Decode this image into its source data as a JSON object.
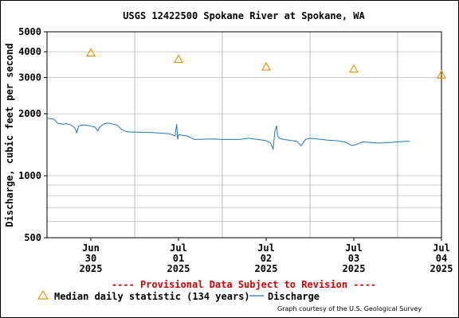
{
  "chart_data": {
    "type": "line",
    "title": "USGS 12422500 Spokane River at Spokane, WA",
    "ylabel": "Discharge, cubic feet per second",
    "yscale": "log",
    "ylim": [
      500,
      5000
    ],
    "yticks": [
      500,
      1000,
      2000,
      3000,
      4000,
      5000
    ],
    "x_range_days": [
      0,
      4.5
    ],
    "xticks": [
      {
        "day": 0.5,
        "month": "Jun",
        "date": "30",
        "year": "2025"
      },
      {
        "day": 1.5,
        "month": "Jul",
        "date": "01",
        "year": "2025"
      },
      {
        "day": 2.5,
        "month": "Jul",
        "date": "02",
        "year": "2025"
      },
      {
        "day": 3.5,
        "month": "Jul",
        "date": "03",
        "year": "2025"
      },
      {
        "day": 4.5,
        "month": "Jul",
        "date": "04",
        "year": "2025"
      }
    ],
    "series": [
      {
        "name": "Median daily statistic (134 years)",
        "marker": "triangle",
        "color": "#e69500",
        "x": [
          0.5,
          1.5,
          2.5,
          3.5,
          4.5
        ],
        "y": [
          3950,
          3680,
          3380,
          3300,
          3090
        ]
      },
      {
        "name": "Discharge",
        "marker": "line",
        "color": "#1f77b4",
        "x": [
          0,
          0.08,
          0.12,
          0.18,
          0.22,
          0.28,
          0.32,
          0.34,
          0.36,
          0.4,
          0.45,
          0.5,
          0.55,
          0.58,
          0.6,
          0.63,
          0.66,
          0.7,
          0.75,
          0.8,
          0.85,
          0.9,
          0.95,
          1.0,
          1.2,
          1.4,
          1.46,
          1.48,
          1.49,
          1.5,
          1.52,
          1.55,
          1.6,
          1.68,
          1.9,
          2.0,
          2.2,
          2.3,
          2.4,
          2.5,
          2.55,
          2.58,
          2.6,
          2.62,
          2.63,
          2.65,
          2.7,
          2.75,
          2.85,
          2.9,
          2.95,
          3.0,
          3.2,
          3.3,
          3.4,
          3.45,
          3.48,
          3.55,
          3.6,
          3.7,
          3.8,
          3.9,
          4.0,
          4.1,
          4.14
        ],
        "y": [
          1900,
          1880,
          1800,
          1780,
          1790,
          1760,
          1700,
          1620,
          1740,
          1760,
          1760,
          1740,
          1720,
          1650,
          1720,
          1760,
          1790,
          1800,
          1780,
          1760,
          1680,
          1640,
          1630,
          1630,
          1620,
          1600,
          1560,
          1780,
          1500,
          1580,
          1580,
          1570,
          1560,
          1500,
          1510,
          1500,
          1500,
          1520,
          1500,
          1480,
          1440,
          1350,
          1650,
          1750,
          1560,
          1520,
          1500,
          1490,
          1470,
          1400,
          1500,
          1520,
          1490,
          1480,
          1460,
          1420,
          1400,
          1430,
          1460,
          1450,
          1440,
          1450,
          1460,
          1470,
          1470
        ]
      }
    ],
    "legend_position": "bottom",
    "grid": true,
    "provisional_text": "---- Provisional Data Subject to Revision ----",
    "credit": "Graph courtesy of the U.S. Geological Survey"
  }
}
